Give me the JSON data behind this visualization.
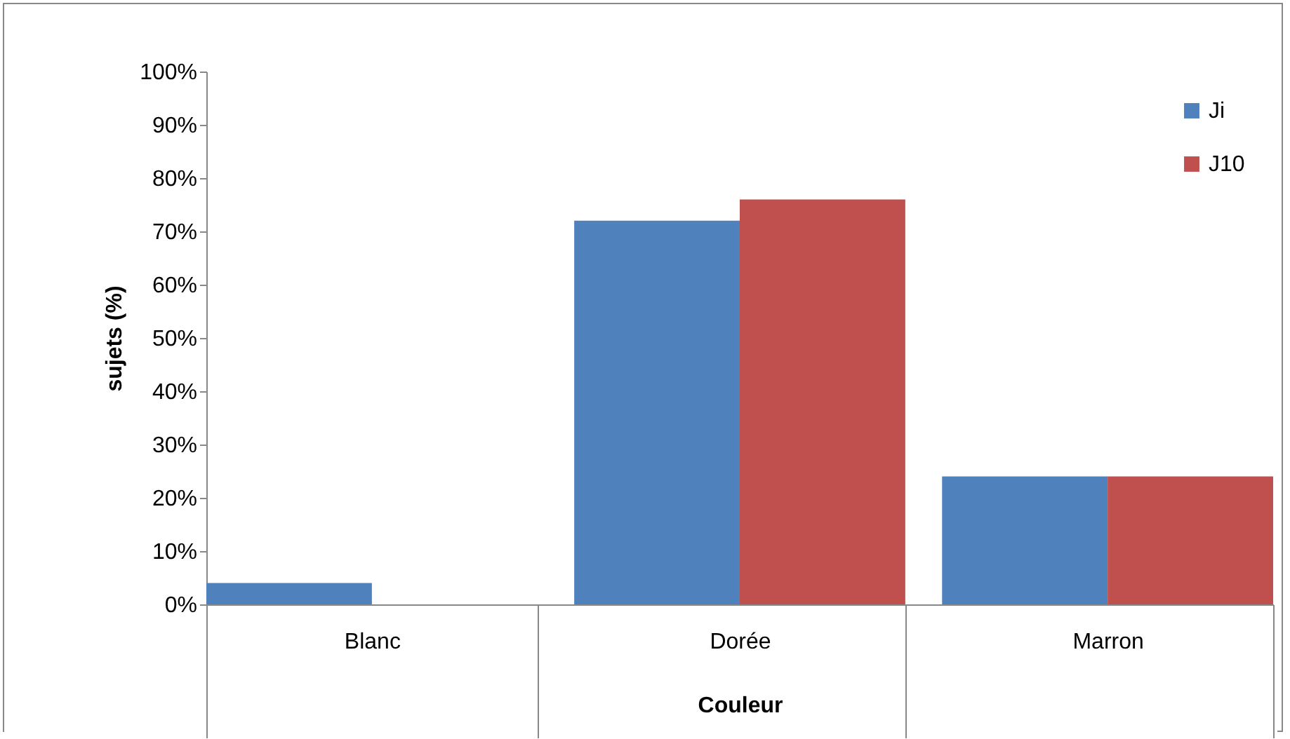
{
  "chart_data": {
    "type": "bar",
    "xlabel": "Couleur",
    "ylabel": "sujets (%)",
    "categories": [
      "Blanc",
      "Dorée",
      "Marron"
    ],
    "series": [
      {
        "name": "Ji",
        "color": "#4f81bd",
        "values": [
          4,
          72,
          24
        ]
      },
      {
        "name": "J10",
        "color": "#c0504d",
        "values": [
          0,
          76,
          24
        ]
      }
    ],
    "ylim": [
      0,
      100
    ],
    "yticks": [
      {
        "value": 0,
        "label": "0%"
      },
      {
        "value": 10,
        "label": "10%"
      },
      {
        "value": 20,
        "label": "20%"
      },
      {
        "value": 30,
        "label": "30%"
      },
      {
        "value": 40,
        "label": "40%"
      },
      {
        "value": 50,
        "label": "50%"
      },
      {
        "value": 60,
        "label": "60%"
      },
      {
        "value": 70,
        "label": "70%"
      },
      {
        "value": 80,
        "label": "80%"
      },
      {
        "value": 90,
        "label": "90%"
      },
      {
        "value": 100,
        "label": "100%"
      }
    ],
    "grid": false,
    "legend": "top right"
  }
}
